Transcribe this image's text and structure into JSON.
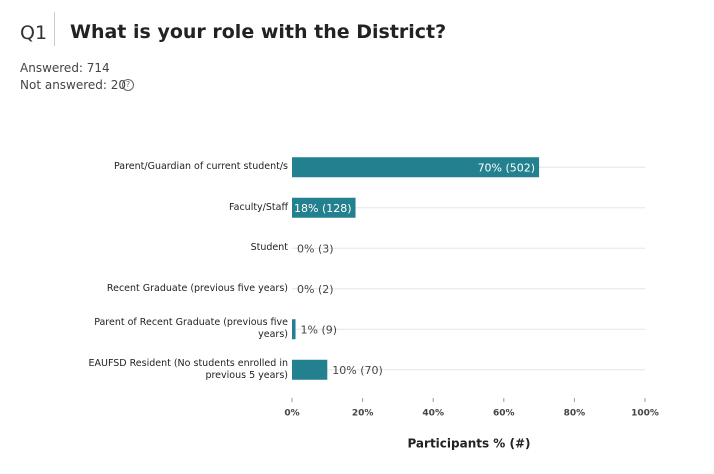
{
  "header": {
    "number": "Q1",
    "question": "What is your role with the District?",
    "answered": "Answered: 714",
    "not_answered": "Not answered: 20"
  },
  "chart_data": {
    "type": "bar",
    "orientation": "horizontal",
    "categories": [
      "Parent/Guardian of current student/s",
      "Faculty/Staff",
      "Student",
      "Recent Graduate (previous five years)",
      "Parent of Recent Graduate (previous five years)",
      "EAUFSD Resident (No students enrolled in previous 5 years)"
    ],
    "values": [
      70,
      18,
      0,
      0,
      1,
      10
    ],
    "value_labels": [
      "70% (502)",
      "18% (128)",
      "0% (3)",
      "0% (2)",
      "1% (9)",
      "10% (70)"
    ],
    "color": "#23818f",
    "xlim": [
      0,
      100
    ],
    "xticks": [
      {
        "value": 0,
        "label": "0%"
      },
      {
        "value": 20,
        "label": "20%"
      },
      {
        "value": 40,
        "label": "40%"
      },
      {
        "value": 60,
        "label": "60%"
      },
      {
        "value": 80,
        "label": "80%"
      },
      {
        "value": 100,
        "label": "100%"
      }
    ],
    "x_label": "Participants % (#)"
  }
}
